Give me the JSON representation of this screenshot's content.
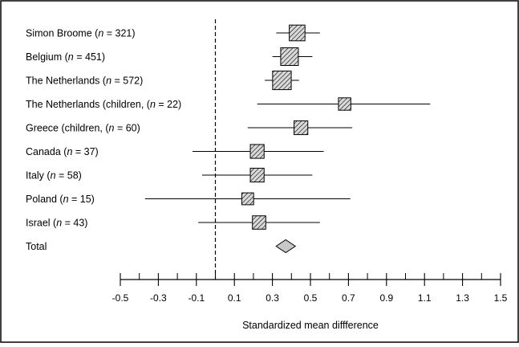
{
  "chart_data": {
    "type": "forest",
    "xlabel": "Standardized mean diffference",
    "xlim": [
      -0.5,
      1.5
    ],
    "x_ticks": [
      "-0.5",
      "-0.3",
      "-0.1",
      "0.1",
      "0.3",
      "0.5",
      "0.7",
      "0.9",
      "1.1",
      "1.3",
      "1.5"
    ],
    "x_tick_values": [
      -0.5,
      -0.3,
      -0.1,
      0.1,
      0.3,
      0.5,
      0.7,
      0.9,
      1.1,
      1.3,
      1.5
    ],
    "x_minor_tick_values": [
      -0.4,
      -0.2,
      0.0,
      0.2,
      0.4,
      0.6,
      0.8,
      1.0,
      1.2,
      1.4
    ],
    "reference_line": 0,
    "studies": [
      {
        "name": "Simon Broome",
        "n": "321",
        "estimate": 0.43,
        "lower": 0.32,
        "upper": 0.55,
        "weight": 0.8
      },
      {
        "name": "Belgium",
        "n": "451",
        "estimate": 0.39,
        "lower": 0.3,
        "upper": 0.51,
        "weight": 1.0
      },
      {
        "name": "The Netherlands",
        "n": "572",
        "estimate": 0.35,
        "lower": 0.26,
        "upper": 0.44,
        "weight": 1.1
      },
      {
        "name": "The Netherlands (children,",
        "n": "22",
        "estimate": 0.68,
        "lower": 0.22,
        "upper": 1.13,
        "weight": 0.45
      },
      {
        "name": "Greece (children,",
        "n": "60",
        "estimate": 0.45,
        "lower": 0.17,
        "upper": 0.72,
        "weight": 0.6
      },
      {
        "name": "Canada",
        "n": "37",
        "estimate": 0.22,
        "lower": -0.12,
        "upper": 0.57,
        "weight": 0.6
      },
      {
        "name": "Italy",
        "n": "58",
        "estimate": 0.22,
        "lower": -0.07,
        "upper": 0.51,
        "weight": 0.6
      },
      {
        "name": "Poland",
        "n": "15",
        "estimate": 0.17,
        "lower": -0.37,
        "upper": 0.71,
        "weight": 0.4
      },
      {
        "name": "Israel",
        "n": "43",
        "estimate": 0.23,
        "lower": -0.09,
        "upper": 0.55,
        "weight": 0.55
      }
    ],
    "total": {
      "name": "Total",
      "estimate": 0.37,
      "lower": 0.32,
      "upper": 0.42
    },
    "colors": {
      "box_fill": "#d9d9d9",
      "diamond_fill": "#c8c8c8",
      "stroke": "#000000"
    }
  }
}
